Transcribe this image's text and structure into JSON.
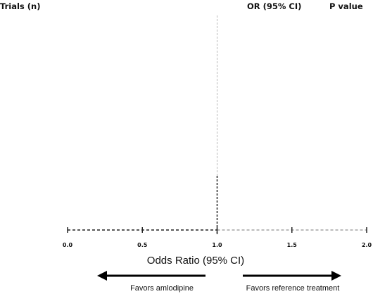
{
  "headers": {
    "trials": "Trials (n)",
    "or": "OR (95% CI)",
    "p": "P value"
  },
  "chart_data": {
    "type": "forest",
    "title": "",
    "xlabel": "Odds Ratio (95% CI)",
    "ylabel": "",
    "xlim": [
      0.0,
      2.0
    ],
    "ticks": [
      0.0,
      0.5,
      1.0,
      1.5,
      2.0
    ],
    "tick_labels": [
      "0.0",
      "0.5",
      "1.0",
      "1.5",
      "2.0"
    ],
    "reference_line": 1.0,
    "studies": [],
    "annotations": {
      "left_label": "Favors amlodipine",
      "right_label": "Favors reference treatment"
    },
    "grid": false,
    "colors": {
      "axis": "#222222",
      "reference_upper": "#bbbbbb",
      "reference_lower": "#222222"
    }
  }
}
